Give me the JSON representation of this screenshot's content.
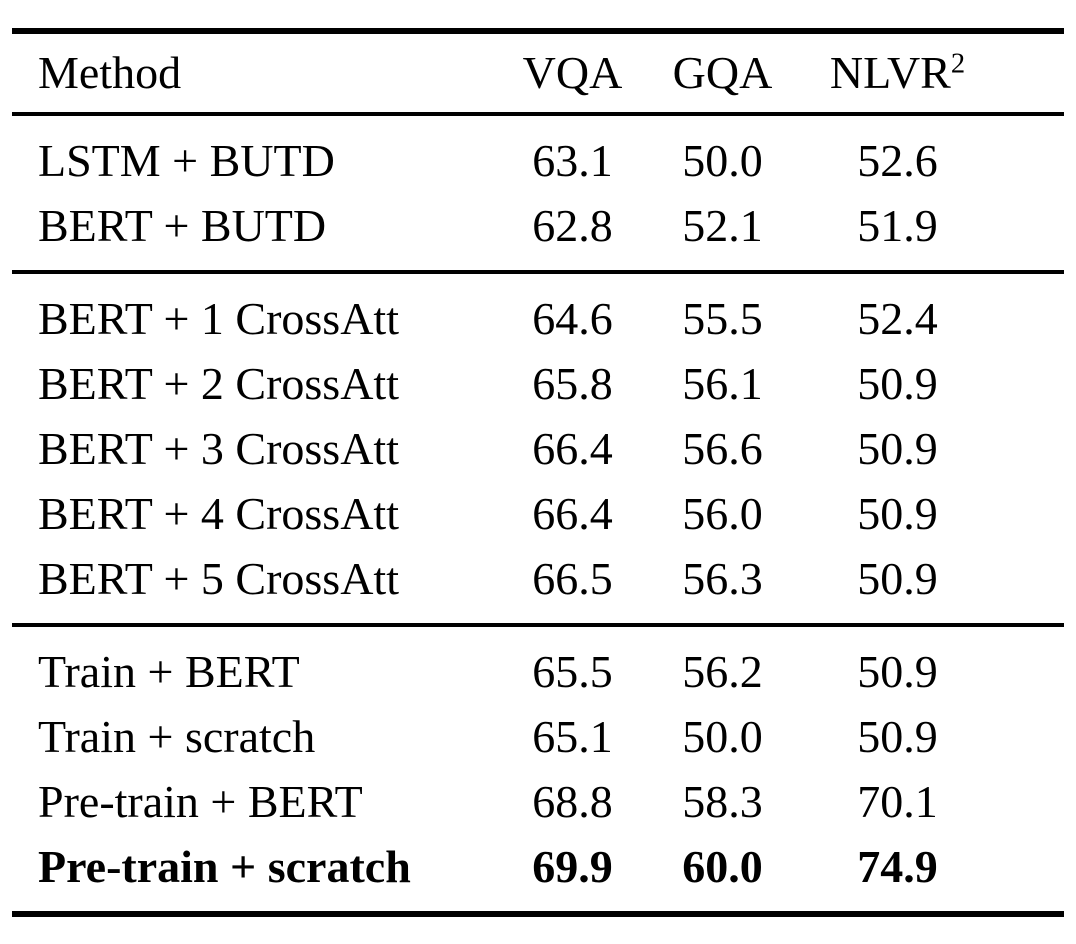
{
  "table": {
    "columns": {
      "method": "Method",
      "vqa": "VQA",
      "gqa": "GQA",
      "nlvr_base": "NLVR",
      "nlvr_sup": "2"
    },
    "sections": [
      {
        "rows": [
          {
            "method": "LSTM + BUTD",
            "vqa": "63.1",
            "gqa": "50.0",
            "nlvr": "52.6"
          },
          {
            "method": "BERT + BUTD",
            "vqa": "62.8",
            "gqa": "52.1",
            "nlvr": "51.9"
          }
        ]
      },
      {
        "rows": [
          {
            "method": "BERT + 1 CrossAtt",
            "vqa": "64.6",
            "gqa": "55.5",
            "nlvr": "52.4"
          },
          {
            "method": "BERT + 2 CrossAtt",
            "vqa": "65.8",
            "gqa": "56.1",
            "nlvr": "50.9"
          },
          {
            "method": "BERT + 3 CrossAtt",
            "vqa": "66.4",
            "gqa": "56.6",
            "nlvr": "50.9"
          },
          {
            "method": "BERT + 4 CrossAtt",
            "vqa": "66.4",
            "gqa": "56.0",
            "nlvr": "50.9"
          },
          {
            "method": "BERT + 5 CrossAtt",
            "vqa": "66.5",
            "gqa": "56.3",
            "nlvr": "50.9"
          }
        ]
      },
      {
        "rows": [
          {
            "method": "Train + BERT",
            "vqa": "65.5",
            "gqa": "56.2",
            "nlvr": "50.9"
          },
          {
            "method": "Train + scratch",
            "vqa": "65.1",
            "gqa": "50.0",
            "nlvr": "50.9"
          },
          {
            "method": "Pre-train + BERT",
            "vqa": "68.8",
            "gqa": "58.3",
            "nlvr": "70.1"
          },
          {
            "method": "Pre-train + scratch",
            "vqa": "69.9",
            "gqa": "60.0",
            "nlvr": "74.9",
            "bold": true
          }
        ]
      }
    ]
  },
  "chart_data": {
    "type": "table",
    "title": "",
    "columns": [
      "Method",
      "VQA",
      "GQA",
      "NLVR2"
    ],
    "rows": [
      [
        "LSTM + BUTD",
        63.1,
        50.0,
        52.6
      ],
      [
        "BERT + BUTD",
        62.8,
        52.1,
        51.9
      ],
      [
        "BERT + 1 CrossAtt",
        64.6,
        55.5,
        52.4
      ],
      [
        "BERT + 2 CrossAtt",
        65.8,
        56.1,
        50.9
      ],
      [
        "BERT + 3 CrossAtt",
        66.4,
        56.6,
        50.9
      ],
      [
        "BERT + 4 CrossAtt",
        66.4,
        56.0,
        50.9
      ],
      [
        "BERT + 5 CrossAtt",
        66.5,
        56.3,
        50.9
      ],
      [
        "Train + BERT",
        65.5,
        56.2,
        50.9
      ],
      [
        "Train + scratch",
        65.1,
        50.0,
        50.9
      ],
      [
        "Pre-train + BERT",
        68.8,
        58.3,
        70.1
      ],
      [
        "Pre-train + scratch",
        69.9,
        60.0,
        74.9
      ]
    ],
    "layout": {
      "group_breaks_after_rows": [
        2,
        7
      ],
      "bold_rows": [
        10
      ]
    }
  }
}
